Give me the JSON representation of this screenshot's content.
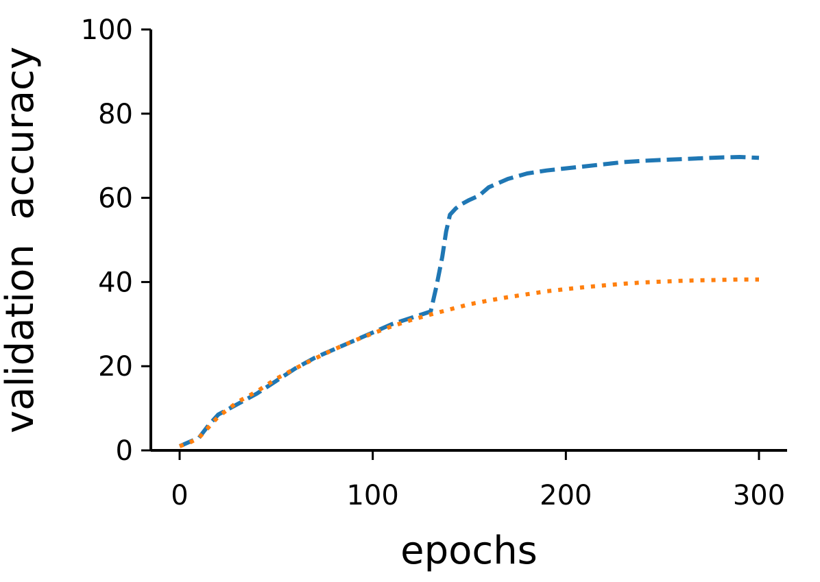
{
  "chart_data": {
    "type": "line",
    "title": "",
    "xlabel": "epochs",
    "ylabel": "validation  accuracy",
    "xlim": [
      -15,
      313
    ],
    "ylim": [
      0,
      100
    ],
    "xticks": [
      0,
      100,
      200,
      300
    ],
    "yticks": [
      0,
      20,
      40,
      60,
      80,
      100
    ],
    "xtick_labels": [
      "0",
      "100",
      "200",
      "300"
    ],
    "ytick_labels": [
      "0",
      "20",
      "40",
      "60",
      "80",
      "100"
    ],
    "grid": false,
    "legend": "none",
    "series": [
      {
        "color": "#1f77b4",
        "linestyle": "dashed",
        "x": [
          0,
          5,
          10,
          15,
          20,
          30,
          40,
          50,
          60,
          70,
          80,
          90,
          100,
          110,
          120,
          130,
          133,
          136,
          138,
          140,
          143,
          146,
          150,
          155,
          160,
          165,
          170,
          180,
          190,
          200,
          210,
          220,
          230,
          240,
          250,
          260,
          270,
          280,
          290,
          300
        ],
        "y": [
          1,
          2,
          3,
          6,
          8.5,
          11,
          13.5,
          16.5,
          19.5,
          22,
          24,
          26,
          28,
          30,
          31.5,
          33,
          39,
          46,
          52,
          56,
          57.5,
          58.5,
          59.5,
          60.5,
          62.5,
          63.5,
          64.5,
          65.8,
          66.5,
          67,
          67.5,
          68,
          68.5,
          68.8,
          69,
          69.2,
          69.4,
          69.6,
          69.7,
          69.5
        ]
      },
      {
        "color": "#ff7f0e",
        "linestyle": "dotted",
        "x": [
          0,
          5,
          10,
          15,
          20,
          30,
          40,
          50,
          60,
          70,
          80,
          90,
          100,
          110,
          120,
          130,
          140,
          150,
          160,
          170,
          180,
          190,
          200,
          210,
          220,
          230,
          240,
          250,
          260,
          270,
          280,
          290,
          300
        ],
        "y": [
          1,
          1.8,
          3,
          5.5,
          8,
          11.5,
          14,
          17,
          19.5,
          21.8,
          24,
          26,
          27.8,
          29.5,
          31,
          32.3,
          33.5,
          34.7,
          35.6,
          36.4,
          37.1,
          37.8,
          38.3,
          38.8,
          39.2,
          39.6,
          39.9,
          40.1,
          40.3,
          40.4,
          40.5,
          40.6,
          40.6
        ]
      }
    ]
  }
}
